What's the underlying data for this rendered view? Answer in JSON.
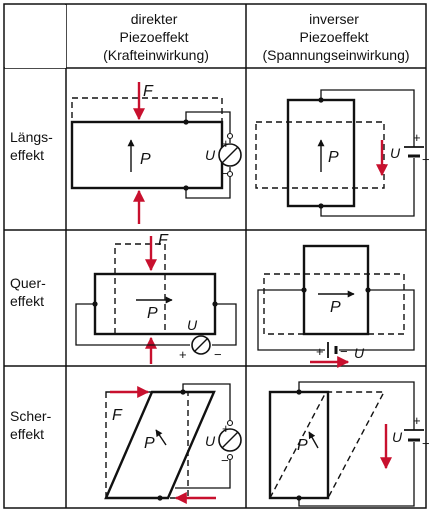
{
  "headers": {
    "col1": [
      "direkter",
      "Piezoeffekt",
      "(Krafteinwirkung)"
    ],
    "col2": [
      "inverser",
      "Piezoeffekt",
      "(Spannungseinwirkung)"
    ]
  },
  "rows": [
    {
      "label": [
        "Längs-",
        "effekt"
      ]
    },
    {
      "label": [
        "Quer-",
        "effekt"
      ]
    },
    {
      "label": [
        "Scher-",
        "effekt"
      ]
    }
  ],
  "symbols": {
    "force": "F",
    "polarization": "P",
    "voltage": "U",
    "plus": "+",
    "minus": "−"
  },
  "colors": {
    "ink": "#111111",
    "arrow": "#c8102e",
    "background": "#ffffff"
  }
}
